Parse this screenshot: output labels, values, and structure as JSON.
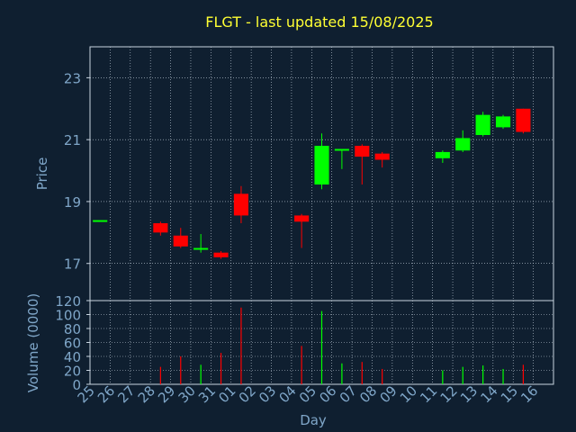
{
  "theme": {
    "background": "#0f1f30",
    "title_color": "#ffff33",
    "axis_text_color": "#7fa6c8",
    "grid_color": "#c8d4e0",
    "up_color": "#00ff00",
    "down_color": "#ff0000",
    "frame_color": "#c8d4e0"
  },
  "chart_data": {
    "type": "candlestick",
    "title": "FLGT - last updated 15/08/2025",
    "xlabel": "Day",
    "price_panel": {
      "ylabel": "Price",
      "ylim": [
        15.8,
        24.0
      ],
      "yticks": [
        17,
        19,
        21,
        23
      ]
    },
    "volume_panel": {
      "ylabel": "Volume (0000)",
      "ylim": [
        0,
        120
      ],
      "yticks": [
        0,
        20,
        40,
        60,
        80,
        100,
        120
      ]
    },
    "x_labels": [
      "25",
      "26",
      "27",
      "28",
      "29",
      "30",
      "31",
      "01",
      "02",
      "03",
      "04",
      "05",
      "06",
      "07",
      "08",
      "09",
      "10",
      "11",
      "12",
      "13",
      "14",
      "15",
      "16"
    ],
    "candles": [
      {
        "x": "25",
        "open": 18.4,
        "high": 18.4,
        "low": 18.4,
        "close": 18.4,
        "volume": 0
      },
      {
        "x": "28",
        "open": 18.3,
        "high": 18.35,
        "low": 17.9,
        "close": 18.0,
        "volume": 25
      },
      {
        "x": "29",
        "open": 17.9,
        "high": 18.15,
        "low": 17.5,
        "close": 17.55,
        "volume": 40
      },
      {
        "x": "30",
        "open": 17.5,
        "high": 17.95,
        "low": 17.35,
        "close": 17.5,
        "volume": 28
      },
      {
        "x": "31",
        "open": 17.35,
        "high": 17.4,
        "low": 17.15,
        "close": 17.2,
        "volume": 45
      },
      {
        "x": "01",
        "open": 19.25,
        "high": 19.5,
        "low": 18.3,
        "close": 18.55,
        "volume": 110
      },
      {
        "x": "04",
        "open": 18.55,
        "high": 18.6,
        "low": 17.5,
        "close": 18.35,
        "volume": 55
      },
      {
        "x": "05",
        "open": 19.55,
        "high": 21.2,
        "low": 19.4,
        "close": 20.8,
        "volume": 105
      },
      {
        "x": "06",
        "open": 20.65,
        "high": 20.7,
        "low": 20.05,
        "close": 20.7,
        "volume": 30
      },
      {
        "x": "07",
        "open": 20.8,
        "high": 20.85,
        "low": 19.55,
        "close": 20.45,
        "volume": 32
      },
      {
        "x": "08",
        "open": 20.55,
        "high": 20.6,
        "low": 20.1,
        "close": 20.35,
        "volume": 22
      },
      {
        "x": "11",
        "open": 20.4,
        "high": 20.65,
        "low": 20.25,
        "close": 20.6,
        "volume": 20
      },
      {
        "x": "12",
        "open": 20.65,
        "high": 21.3,
        "low": 20.6,
        "close": 21.05,
        "volume": 25
      },
      {
        "x": "13",
        "open": 21.15,
        "high": 21.9,
        "low": 21.1,
        "close": 21.8,
        "volume": 27
      },
      {
        "x": "14",
        "open": 21.4,
        "high": 21.8,
        "low": 21.35,
        "close": 21.75,
        "volume": 22
      },
      {
        "x": "15",
        "open": 22.0,
        "high": 22.0,
        "low": 21.2,
        "close": 21.25,
        "volume": 28
      }
    ]
  }
}
